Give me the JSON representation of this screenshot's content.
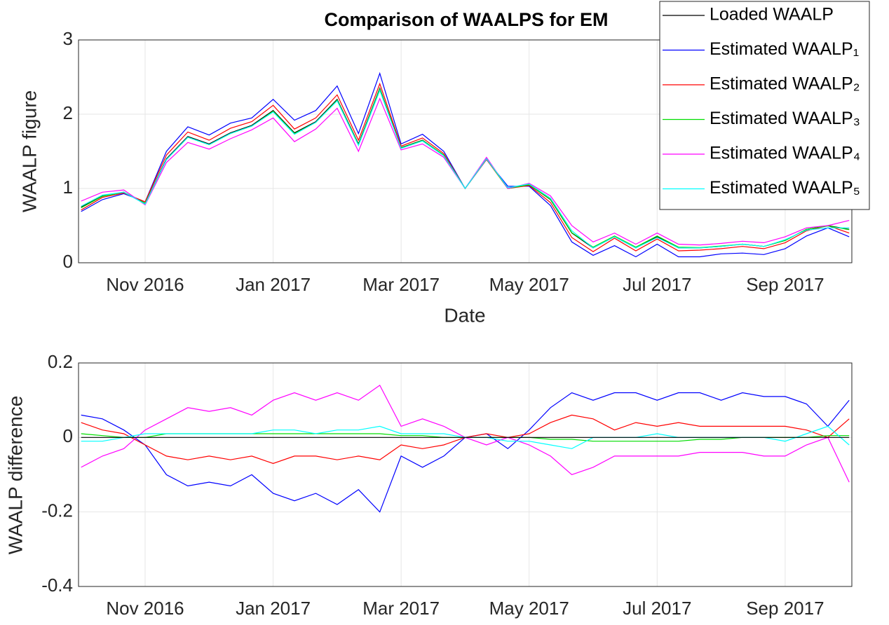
{
  "chart_data": [
    {
      "type": "line",
      "title": "Comparison of WAALPS for EM",
      "x_label": "Date",
      "y_label": "WAALP figure",
      "categories": [
        null,
        null,
        null,
        "Nov 2016",
        null,
        null,
        null,
        null,
        null,
        "Jan 2017",
        null,
        null,
        null,
        null,
        null,
        "Mar 2017",
        null,
        null,
        null,
        null,
        null,
        "May 2017",
        null,
        null,
        null,
        null,
        null,
        "Jul 2017",
        null,
        null,
        null,
        null,
        null,
        "Sep 2017",
        null,
        null,
        null
      ],
      "ylim": [
        0,
        3
      ],
      "yticks": [
        0,
        1,
        2,
        3
      ],
      "grid": true,
      "legend": "upper right",
      "series": [
        {
          "name": "Loaded WAALP",
          "color": "#000000",
          "values": [
            0.75,
            0.9,
            0.95,
            0.8,
            1.4,
            1.7,
            1.6,
            1.75,
            1.85,
            2.05,
            1.75,
            1.9,
            2.2,
            1.6,
            2.35,
            1.55,
            1.65,
            1.45,
            1.0,
            1.4,
            1.0,
            1.05,
            0.85,
            0.4,
            0.2,
            0.35,
            0.2,
            0.35,
            0.2,
            0.2,
            0.22,
            0.25,
            0.22,
            0.3,
            0.45,
            0.5,
            0.45
          ]
        },
        {
          "name": "Estimated WAALP₁",
          "color": "#0000ff",
          "values": [
            0.69,
            0.85,
            0.93,
            0.82,
            1.5,
            1.83,
            1.72,
            1.88,
            1.95,
            2.2,
            1.92,
            2.05,
            2.38,
            1.74,
            2.55,
            1.6,
            1.73,
            1.5,
            1.0,
            1.39,
            1.03,
            1.03,
            0.77,
            0.28,
            0.1,
            0.23,
            0.08,
            0.25,
            0.08,
            0.08,
            0.12,
            0.13,
            0.11,
            0.19,
            0.36,
            0.47,
            0.35
          ]
        },
        {
          "name": "Estimated WAALP₂",
          "color": "#ff0000",
          "values": [
            0.71,
            0.88,
            0.94,
            0.82,
            1.45,
            1.76,
            1.65,
            1.81,
            1.9,
            2.12,
            1.8,
            1.95,
            2.26,
            1.65,
            2.41,
            1.57,
            1.68,
            1.47,
            1.0,
            1.39,
            1.0,
            1.04,
            0.81,
            0.34,
            0.15,
            0.33,
            0.16,
            0.32,
            0.16,
            0.17,
            0.19,
            0.22,
            0.19,
            0.27,
            0.43,
            0.5,
            0.4
          ]
        },
        {
          "name": "Estimated WAALP₃",
          "color": "#00dd00",
          "values": [
            0.74,
            0.895,
            0.95,
            0.8,
            1.39,
            1.69,
            1.59,
            1.74,
            1.84,
            2.04,
            1.74,
            1.89,
            2.19,
            1.59,
            2.34,
            1.545,
            1.645,
            1.45,
            1.0,
            1.4,
            1.0,
            1.05,
            0.855,
            0.405,
            0.21,
            0.36,
            0.21,
            0.36,
            0.21,
            0.205,
            0.225,
            0.25,
            0.22,
            0.3,
            0.45,
            0.495,
            0.445
          ]
        },
        {
          "name": "Estimated WAALP₄",
          "color": "#ff00ff",
          "values": [
            0.83,
            0.95,
            0.98,
            0.78,
            1.35,
            1.62,
            1.53,
            1.67,
            1.79,
            1.95,
            1.63,
            1.8,
            2.08,
            1.5,
            2.21,
            1.52,
            1.6,
            1.42,
            1.0,
            1.42,
            1.0,
            1.07,
            0.9,
            0.5,
            0.28,
            0.4,
            0.25,
            0.4,
            0.25,
            0.24,
            0.26,
            0.29,
            0.27,
            0.35,
            0.47,
            0.5,
            0.57
          ]
        },
        {
          "name": "Estimated WAALP₅",
          "color": "#00ffff",
          "values": [
            0.76,
            0.91,
            0.95,
            0.79,
            1.39,
            1.69,
            1.59,
            1.74,
            1.84,
            2.03,
            1.73,
            1.89,
            2.18,
            1.58,
            2.32,
            1.54,
            1.64,
            1.44,
            1.0,
            1.4,
            1.01,
            1.06,
            0.87,
            0.43,
            0.2,
            0.35,
            0.2,
            0.34,
            0.2,
            0.2,
            0.22,
            0.25,
            0.22,
            0.31,
            0.44,
            0.47,
            0.47
          ]
        }
      ]
    },
    {
      "type": "line",
      "y_label": "WAALP difference",
      "categories": [
        null,
        null,
        null,
        "Nov 2016",
        null,
        null,
        null,
        null,
        null,
        "Jan 2017",
        null,
        null,
        null,
        null,
        null,
        "Mar 2017",
        null,
        null,
        null,
        null,
        null,
        "May 2017",
        null,
        null,
        null,
        null,
        null,
        "Jul 2017",
        null,
        null,
        null,
        null,
        null,
        "Sep 2017",
        null,
        null,
        null
      ],
      "ylim": [
        -0.4,
        0.2
      ],
      "yticks": [
        -0.4,
        -0.2,
        0,
        0.2
      ],
      "grid": true,
      "series": [
        {
          "color": "#0000ff",
          "values": [
            0.06,
            0.05,
            0.02,
            -0.02,
            -0.1,
            -0.13,
            -0.12,
            -0.13,
            -0.1,
            -0.15,
            -0.17,
            -0.15,
            -0.18,
            -0.14,
            -0.2,
            -0.05,
            -0.08,
            -0.05,
            0,
            0.01,
            -0.03,
            0.02,
            0.08,
            0.12,
            0.1,
            0.12,
            0.12,
            0.1,
            0.12,
            0.12,
            0.1,
            0.12,
            0.11,
            0.11,
            0.09,
            0.03,
            0.1
          ]
        },
        {
          "color": "#ff0000",
          "values": [
            0.04,
            0.02,
            0.01,
            -0.02,
            -0.05,
            -0.06,
            -0.05,
            -0.06,
            -0.05,
            -0.07,
            -0.05,
            -0.05,
            -0.06,
            -0.05,
            -0.06,
            -0.02,
            -0.03,
            -0.02,
            0,
            0.01,
            0,
            0.01,
            0.04,
            0.06,
            0.05,
            0.02,
            0.04,
            0.03,
            0.04,
            0.03,
            0.03,
            0.03,
            0.03,
            0.03,
            0.02,
            0,
            0.05
          ]
        },
        {
          "color": "#00dd00",
          "values": [
            0.01,
            0.005,
            0,
            0,
            0.01,
            0.01,
            0.01,
            0.01,
            0.01,
            0.01,
            0.01,
            0.01,
            0.01,
            0.01,
            0.01,
            0.005,
            0.005,
            0,
            0,
            0,
            0,
            0,
            -0.005,
            -0.005,
            -0.01,
            -0.01,
            -0.01,
            -0.01,
            -0.01,
            -0.005,
            -0.005,
            0,
            0,
            0,
            0,
            0.005,
            0.005
          ]
        },
        {
          "color": "#ff00ff",
          "values": [
            -0.08,
            -0.05,
            -0.03,
            0.02,
            0.05,
            0.08,
            0.07,
            0.08,
            0.06,
            0.1,
            0.12,
            0.1,
            0.12,
            0.1,
            0.14,
            0.03,
            0.05,
            0.03,
            0,
            -0.02,
            0,
            -0.02,
            -0.05,
            -0.1,
            -0.08,
            -0.05,
            -0.05,
            -0.05,
            -0.05,
            -0.04,
            -0.04,
            -0.04,
            -0.05,
            -0.05,
            -0.02,
            0,
            -0.12
          ]
        },
        {
          "color": "#00ffff",
          "values": [
            -0.01,
            -0.01,
            0,
            0.01,
            0.01,
            0.01,
            0.01,
            0.01,
            0.01,
            0.02,
            0.02,
            0.01,
            0.02,
            0.02,
            0.03,
            0.01,
            0.01,
            0.01,
            0,
            0,
            -0.01,
            -0.01,
            -0.02,
            -0.03,
            0,
            0,
            0,
            0.01,
            0,
            0,
            0,
            0,
            0,
            -0.01,
            0.01,
            0.03,
            -0.02
          ]
        },
        {
          "color": "#000000",
          "values": [
            0,
            0,
            0,
            0,
            0,
            0,
            0,
            0,
            0,
            0,
            0,
            0,
            0,
            0,
            0,
            0,
            0,
            0,
            0,
            0,
            0,
            0,
            0,
            0,
            0,
            0,
            0,
            0,
            0,
            0,
            0,
            0,
            0,
            0,
            0,
            0,
            0
          ]
        }
      ]
    }
  ]
}
